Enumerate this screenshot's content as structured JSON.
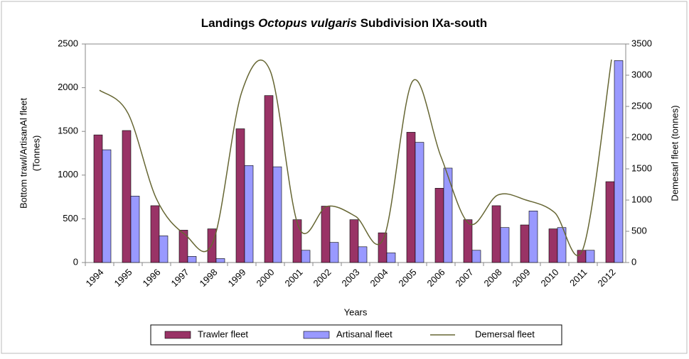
{
  "chart_data": {
    "type": "bar",
    "title": [
      "Landings",
      "Octopus vulgaris",
      "Subdivision IXa-south"
    ],
    "xlabel": "Years",
    "ylabel": [
      "Bottom trawl/ArtisanAl fleet",
      "(Tonnes)"
    ],
    "y2label": "Demesarl fleet (tonnes)",
    "categories": [
      "1994",
      "1995",
      "1996",
      "1997",
      "1998",
      "1999",
      "2000",
      "2001",
      "2002",
      "2003",
      "2004",
      "2005",
      "2006",
      "2007",
      "2008",
      "2009",
      "2010",
      "2011",
      "2012"
    ],
    "series": [
      {
        "name": "Trawler fleet",
        "color": "#993366",
        "values": [
          1460,
          1510,
          650,
          370,
          385,
          1530,
          1910,
          490,
          645,
          490,
          340,
          1490,
          850,
          490,
          650,
          430,
          385,
          140,
          925
        ]
      },
      {
        "name": "Artisanal fleet",
        "color": "#9999ff",
        "values": [
          1290,
          760,
          305,
          70,
          45,
          1110,
          1095,
          140,
          230,
          180,
          110,
          1375,
          1080,
          140,
          400,
          590,
          400,
          140,
          2310
        ]
      },
      {
        "name": "Demersal fleet",
        "color": "#666633",
        "type": "line",
        "axis": "y2",
        "values": [
          2760,
          2390,
          1020,
          450,
          340,
          2730,
          3070,
          570,
          900,
          740,
          400,
          2900,
          1700,
          620,
          1080,
          1000,
          800,
          220,
          3250
        ]
      }
    ],
    "ylim": [
      0,
      2500
    ],
    "yticks": [
      0,
      500,
      1000,
      1500,
      2000,
      2500
    ],
    "y2lim": [
      0,
      3500
    ],
    "y2ticks": [
      0,
      500,
      1000,
      1500,
      2000,
      2500,
      3000,
      3500
    ],
    "legend": "bottom"
  }
}
